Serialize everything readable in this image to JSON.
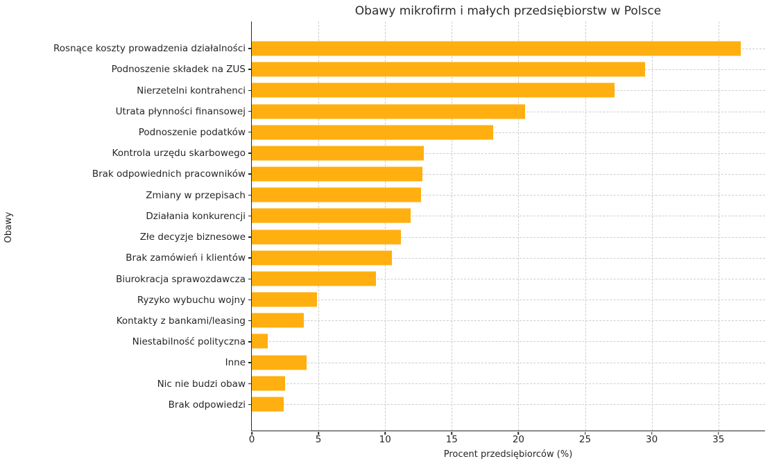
{
  "chart_data": {
    "type": "bar",
    "orientation": "horizontal",
    "title": "Obawy mikrofirm i małych przedsiębiorstw w Polsce",
    "xlabel": "Procent przedsiębiorców (%)",
    "ylabel": "Obawy",
    "categories": [
      "Rosnące koszty prowadzenia działalności",
      "Podnoszenie składek na ZUS",
      "Nierzetelni kontrahenci",
      "Utrata płynności finansowej",
      "Podnoszenie podatków",
      "Kontrola urzędu skarbowego",
      "Brak odpowiednich pracowników",
      "Zmiany w przepisach",
      "Działania konkurencji",
      "Złe decyzje biznesowe",
      "Brak zamówień i klientów",
      "Biurokracja sprawozdawcza",
      "Ryzyko wybuchu wojny",
      "Kontakty z bankami/leasing",
      "Niestabilność polityczna",
      "Inne",
      "Nic nie budzi obaw",
      "Brak odpowiedzi"
    ],
    "values": [
      36.7,
      29.5,
      27.2,
      20.5,
      18.1,
      12.9,
      12.8,
      12.7,
      11.9,
      11.2,
      10.5,
      9.3,
      4.9,
      3.9,
      1.2,
      4.1,
      2.5,
      2.4
    ],
    "xlim": [
      0,
      38.5
    ],
    "xticks": [
      0,
      5,
      10,
      15,
      20,
      25,
      30,
      35
    ],
    "grid": true,
    "grid_style": "dashed",
    "legend": false,
    "bar_color": "#FFAF0F",
    "grid_color": "#cccccc",
    "axis_color": "#262626",
    "background_color": "#ffffff"
  }
}
